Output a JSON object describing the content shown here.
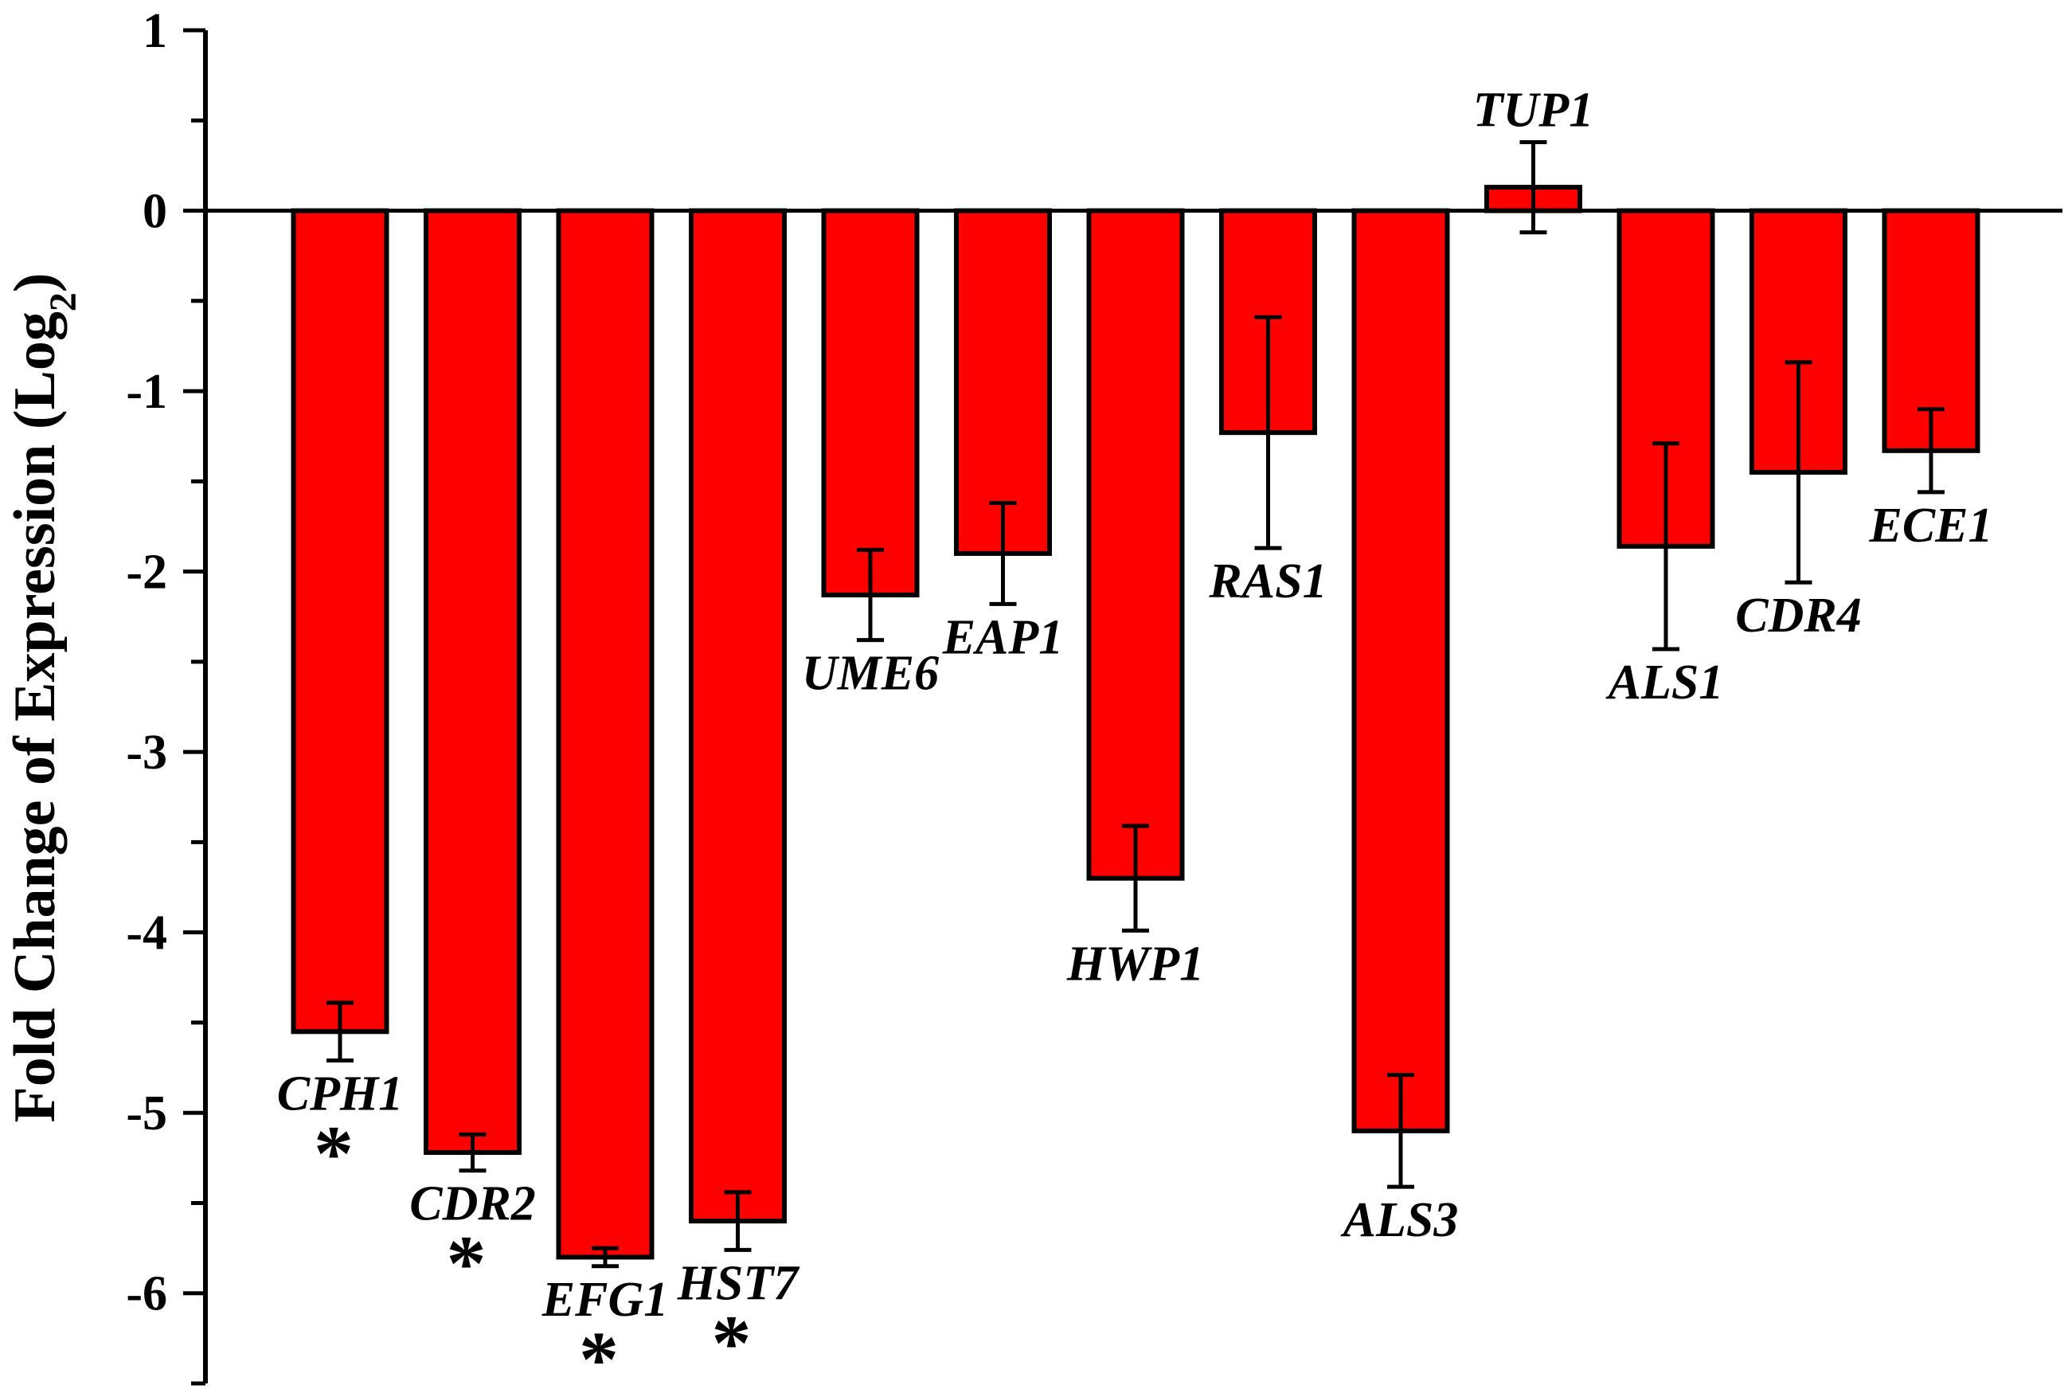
{
  "chart_data": {
    "type": "bar",
    "title": "",
    "xlabel": "",
    "ylabel": "Fold Change of Expression (Log",
    "ylabel_subscript": "2",
    "ylabel_close": ")",
    "ylim": [
      -6.5,
      1
    ],
    "yticks": [
      1,
      0,
      -1,
      -2,
      -3,
      -4,
      -5,
      -6
    ],
    "ytick_labels": [
      "1",
      "0",
      "-1",
      "-2",
      "-3",
      "-4",
      "-5",
      "-6"
    ],
    "grid": false,
    "bar_color": "#ff0000",
    "categories": [
      "CPH1",
      "CDR2",
      "EFG1",
      "HST7",
      "UME6",
      "EAP1",
      "HWP1",
      "RAS1",
      "ALS3",
      "TUP1",
      "ALS1",
      "CDR4",
      "ECE1"
    ],
    "values": [
      -4.55,
      -5.22,
      -5.8,
      -5.6,
      -2.13,
      -1.9,
      -3.7,
      -1.23,
      -5.1,
      0.13,
      -1.86,
      -1.45,
      -1.33
    ],
    "error": [
      0.16,
      0.1,
      0.05,
      0.16,
      0.25,
      0.28,
      0.29,
      0.64,
      0.31,
      0.25,
      0.57,
      0.61,
      0.23
    ],
    "significant": [
      "*",
      "*",
      "*",
      "*",
      "",
      "",
      "",
      "",
      "",
      "",
      "",
      "",
      ""
    ]
  }
}
